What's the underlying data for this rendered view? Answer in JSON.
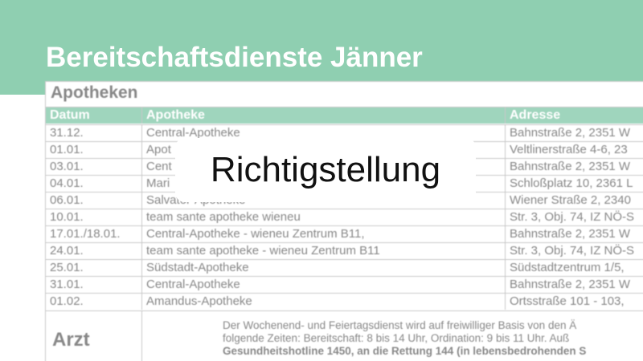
{
  "header": {
    "title": "Bereitschaftsdienste Jänner"
  },
  "section": {
    "title": "Apotheken"
  },
  "table": {
    "columns": [
      "Datum",
      "Apotheke",
      "Adresse"
    ],
    "rows": [
      [
        "31.12.",
        "Central-Apotheke",
        "Bahnstraße 2, 2351 W"
      ],
      [
        "01.01.",
        "Apot",
        "Veltlinerstraße 4-6, 23"
      ],
      [
        "03.01.",
        "Cent",
        "Bahnstraße 2, 2351 W"
      ],
      [
        "04.01.",
        "Mari",
        "Schloßplatz 10, 2361 L"
      ],
      [
        "06.01.",
        "Salvator-Apotheke",
        "Wiener Straße 2, 2340"
      ],
      [
        "10.01.",
        "team sante apotheke wieneu",
        "Str. 3, Obj. 74, IZ NÖ-S"
      ],
      [
        "17.01./18.01.",
        "Central-Apotheke - wieneu Zentrum B11,",
        "Bahnstraße 2, 2351 W"
      ],
      [
        "24.01.",
        "team sante apotheke -  wieneu Zentrum B11",
        "Str. 3, Obj. 74, IZ NÖ-S"
      ],
      [
        "25.01.",
        "Südstadt-Apotheke",
        "Südstadtzentrum 1/5,"
      ],
      [
        "31.01.",
        "Central-Apotheke",
        "Bahnstraße 2, 2351 W"
      ],
      [
        "01.02.",
        "Amandus-Apotheke",
        "Ortsstraße 101 - 103,"
      ]
    ]
  },
  "doctor": {
    "label": "Arzt",
    "lines": [
      "Der Wochenend- und Feiertagsdienst wird auf freiwilliger Basis von den Ä",
      "folgende Zeiten: Bereitschaft: 8 bis 14 Uhr, Ordination: 9 bis 11 Uhr. Auß",
      "Gesundheitshotline 1450, an die Rettung 144 (in lebensbedrohenden S"
    ]
  },
  "overlay": {
    "text": "Richtigstellung"
  }
}
